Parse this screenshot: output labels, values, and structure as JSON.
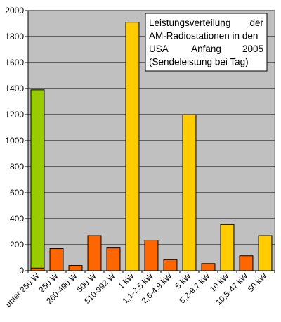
{
  "chart_data": {
    "type": "bar",
    "title_lines": [
      [
        "Leistungsverteilung",
        "der"
      ],
      [
        "AM-Radiostationen in den"
      ],
      [
        "USA",
        "Anfang",
        "2005"
      ],
      [
        "(Sendeleistung bei Tag)"
      ]
    ],
    "categories": [
      "unter 250 W",
      "250 W",
      "260-490 W",
      "500 W",
      "510-992 W",
      "1 kW",
      "1,1-2,5 kW",
      "2,6-4,9 kW",
      "5 kW",
      "5,2-9,7 kW",
      "10 kW",
      "10,5-47 kW",
      "50 kW"
    ],
    "values": [
      1390,
      170,
      40,
      270,
      175,
      1910,
      235,
      85,
      1200,
      55,
      355,
      115,
      270
    ],
    "bar_colors": [
      "#99CC00",
      "#FF6600",
      "#FF6600",
      "#FF6600",
      "#FF6600",
      "#FFCC00",
      "#FF6600",
      "#FF6600",
      "#FFCC00",
      "#FF6600",
      "#FFCC00",
      "#FF6600",
      "#FFCC00"
    ],
    "overlay_bar": {
      "category_index": 0,
      "value": 20,
      "color": "#FF6600"
    },
    "ylim": [
      0,
      2000
    ],
    "ytick_step": 200,
    "grid": true,
    "plot_background": "#C0C0C0"
  }
}
